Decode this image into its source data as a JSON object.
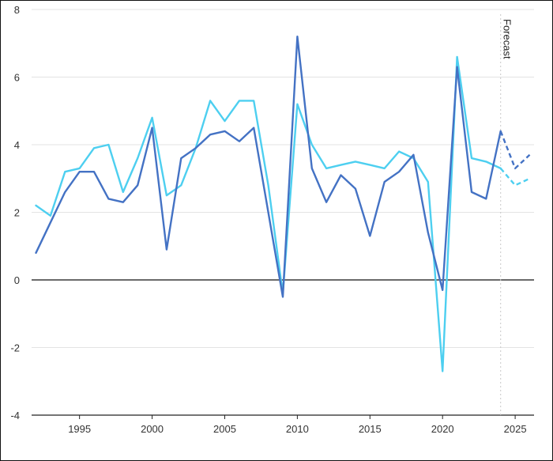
{
  "chart_data": {
    "type": "line",
    "title": "",
    "xlabel": "",
    "ylabel": "",
    "x": [
      1992,
      1993,
      1994,
      1995,
      1996,
      1997,
      1998,
      1999,
      2000,
      2001,
      2002,
      2003,
      2004,
      2005,
      2006,
      2007,
      2008,
      2009,
      2010,
      2011,
      2012,
      2013,
      2014,
      2015,
      2016,
      2017,
      2018,
      2019,
      2020,
      2021,
      2022,
      2023,
      2024,
      2025,
      2026
    ],
    "xlim": [
      1991.7,
      2026.3
    ],
    "ylim": [
      -4,
      8
    ],
    "x_ticks": [
      1995,
      2000,
      2005,
      2010,
      2015,
      2020,
      2025
    ],
    "x_tick_labels": [
      "1995",
      "2000",
      "2005",
      "2010",
      "2015",
      "2020",
      "2025"
    ],
    "y_ticks": [
      -4,
      -2,
      0,
      2,
      4,
      6,
      8
    ],
    "y_tick_labels": [
      "-4",
      "-2",
      "0",
      "2",
      "4",
      "6",
      "8"
    ],
    "grid": "horizontal",
    "legend": "none",
    "forecast_start": 2024,
    "annotation": "Forecast",
    "series": [
      {
        "color": "#4472c4",
        "values": [
          0.8,
          1.7,
          2.6,
          3.2,
          3.2,
          2.4,
          2.3,
          2.8,
          4.5,
          0.9,
          3.6,
          3.9,
          4.3,
          4.4,
          4.1,
          4.5,
          2.0,
          -0.5,
          7.2,
          3.3,
          2.3,
          3.1,
          2.7,
          1.3,
          2.9,
          3.2,
          3.7,
          1.4,
          -0.3,
          6.3,
          2.6,
          2.4,
          4.4,
          3.3,
          3.7
        ]
      },
      {
        "color": "#4dcff0",
        "values": [
          2.2,
          1.9,
          3.2,
          3.3,
          3.9,
          4.0,
          2.6,
          3.6,
          4.8,
          2.5,
          2.8,
          3.9,
          5.3,
          4.7,
          5.3,
          5.3,
          2.8,
          -0.4,
          5.2,
          4.0,
          3.3,
          3.4,
          3.5,
          3.4,
          3.3,
          3.8,
          3.6,
          2.9,
          -2.7,
          6.6,
          3.6,
          3.5,
          3.3,
          2.8,
          3.0
        ]
      }
    ]
  }
}
